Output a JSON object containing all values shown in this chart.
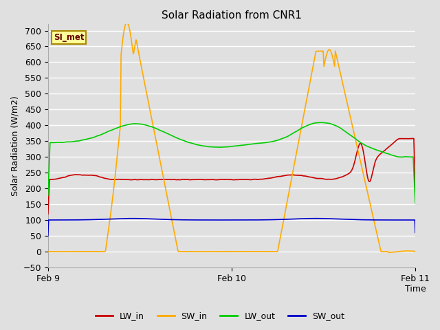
{
  "title": "Solar Radiation from CNR1",
  "ylabel": "Solar Radiation (W/m2)",
  "xlim": [
    0,
    48
  ],
  "ylim": [
    -50,
    720
  ],
  "yticks": [
    -50,
    0,
    50,
    100,
    150,
    200,
    250,
    300,
    350,
    400,
    450,
    500,
    550,
    600,
    650,
    700
  ],
  "xtick_positions": [
    0,
    24,
    48
  ],
  "xtick_labels": [
    "Feb 9",
    "Feb 10",
    "Feb 11"
  ],
  "bg_color": "#e0e0e0",
  "grid_color": "#ffffff",
  "lw_in_color": "#cc0000",
  "sw_in_color": "#ffaa00",
  "lw_out_color": "#00cc00",
  "sw_out_color": "#0000cc",
  "legend_labels": [
    "LW_in",
    "SW_in",
    "LW_out",
    "SW_out"
  ],
  "watermark_text": "SI_met",
  "watermark_fg": "#660000",
  "watermark_bg": "#ffff99",
  "watermark_border": "#aa8800",
  "title_fontsize": 11,
  "axis_fontsize": 9,
  "tick_fontsize": 9,
  "legend_fontsize": 9
}
